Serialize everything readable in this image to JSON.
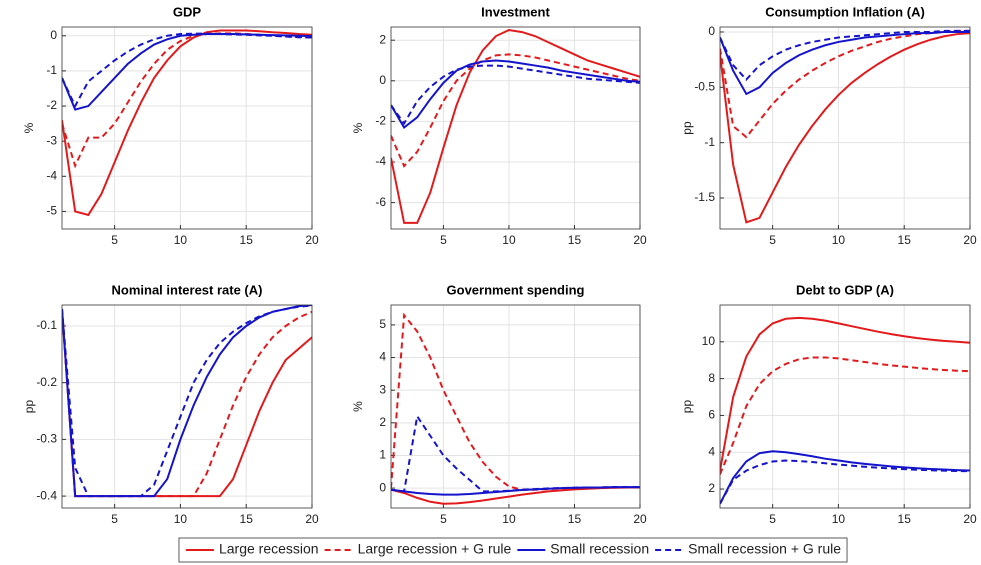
{
  "chart_data": [
    {
      "type": "line",
      "title": "GDP",
      "ylabel": "%",
      "legend_position": "bottom",
      "grid": true,
      "x": [
        1,
        2,
        3,
        4,
        5,
        6,
        7,
        8,
        9,
        10,
        11,
        12,
        13,
        14,
        15,
        16,
        17,
        18,
        19,
        20
      ],
      "xlim": [
        1,
        20
      ],
      "xticks": [
        5,
        10,
        15,
        20
      ],
      "ylim": [
        -5.5,
        0.25
      ],
      "yticks": [
        -5,
        -4,
        -3,
        -2,
        -1,
        0
      ],
      "series": [
        {
          "name": "Large recession",
          "color": "#e31a1c",
          "dash": false,
          "values": [
            -2.4,
            -5.0,
            -5.1,
            -4.5,
            -3.6,
            -2.7,
            -1.9,
            -1.2,
            -0.7,
            -0.3,
            -0.05,
            0.1,
            0.15,
            0.15,
            0.15,
            0.13,
            0.1,
            0.08,
            0.05,
            0.03
          ]
        },
        {
          "name": "Large recession + G rule",
          "color": "#e31a1c",
          "dash": true,
          "values": [
            -2.5,
            -3.7,
            -2.9,
            -2.9,
            -2.5,
            -1.9,
            -1.3,
            -0.8,
            -0.4,
            -0.15,
            0,
            0.05,
            0.07,
            0.07,
            0.05,
            0.03,
            0,
            -0.02,
            -0.04,
            -0.05
          ]
        },
        {
          "name": "Small recession",
          "color": "#1414cc",
          "dash": false,
          "values": [
            -1.2,
            -2.1,
            -2.0,
            -1.6,
            -1.2,
            -0.8,
            -0.5,
            -0.25,
            -0.1,
            0,
            0.03,
            0.05,
            0.05,
            0.05,
            0.04,
            0.03,
            0.02,
            0.01,
            0,
            -0.01
          ]
        },
        {
          "name": "Small recession + G rule",
          "color": "#1414cc",
          "dash": true,
          "values": [
            -1.2,
            -2.0,
            -1.3,
            -1.0,
            -0.7,
            -0.45,
            -0.25,
            -0.1,
            0,
            0.05,
            0.06,
            0.06,
            0.05,
            0.04,
            0.03,
            0.01,
            0,
            -0.02,
            -0.04,
            -0.05
          ]
        }
      ]
    },
    {
      "type": "line",
      "title": "Investment",
      "ylabel": "%",
      "grid": true,
      "x": [
        1,
        2,
        3,
        4,
        5,
        6,
        7,
        8,
        9,
        10,
        11,
        12,
        13,
        14,
        15,
        16,
        17,
        18,
        19,
        20
      ],
      "xlim": [
        1,
        20
      ],
      "xticks": [
        5,
        10,
        15,
        20
      ],
      "ylim": [
        -7.3,
        2.65
      ],
      "yticks": [
        -6,
        -4,
        -2,
        0,
        2
      ],
      "series": [
        {
          "color": "#e31a1c",
          "dash": false,
          "values": [
            -3.8,
            -7.0,
            -7.0,
            -5.5,
            -3.3,
            -1.2,
            0.4,
            1.5,
            2.2,
            2.5,
            2.4,
            2.2,
            1.9,
            1.6,
            1.3,
            1.0,
            0.8,
            0.6,
            0.4,
            0.2
          ]
        },
        {
          "color": "#e31a1c",
          "dash": true,
          "values": [
            -2.7,
            -4.2,
            -3.5,
            -2.3,
            -1.0,
            0,
            0.6,
            1.0,
            1.25,
            1.3,
            1.25,
            1.15,
            1.0,
            0.85,
            0.7,
            0.55,
            0.4,
            0.25,
            0.1,
            0
          ]
        },
        {
          "color": "#1414cc",
          "dash": false,
          "values": [
            -1.2,
            -2.3,
            -1.8,
            -0.9,
            -0.1,
            0.5,
            0.8,
            0.95,
            1.0,
            0.95,
            0.85,
            0.75,
            0.65,
            0.5,
            0.4,
            0.3,
            0.2,
            0.1,
            0,
            -0.05
          ]
        },
        {
          "color": "#1414cc",
          "dash": true,
          "values": [
            -1.2,
            -2.1,
            -1.0,
            -0.3,
            0.2,
            0.55,
            0.7,
            0.75,
            0.75,
            0.7,
            0.6,
            0.5,
            0.4,
            0.3,
            0.2,
            0.1,
            0.05,
            0,
            -0.05,
            -0.1
          ]
        }
      ]
    },
    {
      "type": "line",
      "title": "Consumption Inflation (A)",
      "ylabel": "pp",
      "grid": true,
      "x": [
        1,
        2,
        3,
        4,
        5,
        6,
        7,
        8,
        9,
        10,
        11,
        12,
        13,
        14,
        15,
        16,
        17,
        18,
        19,
        20
      ],
      "xlim": [
        1,
        20
      ],
      "xticks": [
        5,
        10,
        15,
        20
      ],
      "ylim": [
        -1.78,
        0.045
      ],
      "yticks": [
        -1.5,
        -1,
        -0.5,
        0
      ],
      "series": [
        {
          "color": "#e31a1c",
          "dash": false,
          "values": [
            -0.2,
            -1.2,
            -1.72,
            -1.68,
            -1.45,
            -1.22,
            -1.02,
            -0.85,
            -0.7,
            -0.57,
            -0.46,
            -0.37,
            -0.29,
            -0.22,
            -0.16,
            -0.11,
            -0.07,
            -0.04,
            -0.02,
            -0.01
          ]
        },
        {
          "color": "#e31a1c",
          "dash": true,
          "values": [
            -0.15,
            -0.85,
            -0.95,
            -0.8,
            -0.65,
            -0.53,
            -0.43,
            -0.35,
            -0.28,
            -0.22,
            -0.17,
            -0.13,
            -0.09,
            -0.06,
            -0.04,
            -0.02,
            -0.01,
            0,
            0.01,
            0.01
          ]
        },
        {
          "color": "#1414cc",
          "dash": false,
          "values": [
            -0.05,
            -0.35,
            -0.56,
            -0.5,
            -0.37,
            -0.28,
            -0.21,
            -0.16,
            -0.12,
            -0.09,
            -0.07,
            -0.05,
            -0.04,
            -0.03,
            -0.02,
            -0.01,
            -0.01,
            0,
            0,
            0
          ]
        },
        {
          "color": "#1414cc",
          "dash": true,
          "values": [
            -0.05,
            -0.3,
            -0.43,
            -0.3,
            -0.22,
            -0.16,
            -0.12,
            -0.09,
            -0.07,
            -0.05,
            -0.04,
            -0.03,
            -0.02,
            -0.01,
            0,
            0,
            0,
            0.01,
            0.01,
            0.01
          ]
        }
      ]
    },
    {
      "type": "line",
      "title": "Nominal interest rate (A)",
      "ylabel": "pp",
      "grid": true,
      "x": [
        1,
        2,
        3,
        4,
        5,
        6,
        7,
        8,
        9,
        10,
        11,
        12,
        13,
        14,
        15,
        16,
        17,
        18,
        19,
        20
      ],
      "xlim": [
        1,
        20
      ],
      "xticks": [
        5,
        10,
        15,
        20
      ],
      "ylim": [
        -0.421,
        -0.063
      ],
      "yticks": [
        -0.4,
        -0.3,
        -0.2,
        -0.1
      ],
      "series": [
        {
          "color": "#e31a1c",
          "dash": false,
          "values": [
            -0.07,
            -0.4,
            -0.4,
            -0.4,
            -0.4,
            -0.4,
            -0.4,
            -0.4,
            -0.4,
            -0.4,
            -0.4,
            -0.4,
            -0.4,
            -0.37,
            -0.31,
            -0.25,
            -0.2,
            -0.16,
            -0.14,
            -0.12
          ]
        },
        {
          "color": "#e31a1c",
          "dash": true,
          "values": [
            -0.07,
            -0.4,
            -0.4,
            -0.4,
            -0.4,
            -0.4,
            -0.4,
            -0.4,
            -0.4,
            -0.4,
            -0.4,
            -0.36,
            -0.3,
            -0.24,
            -0.19,
            -0.15,
            -0.12,
            -0.1,
            -0.085,
            -0.075
          ]
        },
        {
          "color": "#1414cc",
          "dash": false,
          "values": [
            -0.07,
            -0.4,
            -0.4,
            -0.4,
            -0.4,
            -0.4,
            -0.4,
            -0.4,
            -0.37,
            -0.3,
            -0.24,
            -0.19,
            -0.15,
            -0.12,
            -0.1,
            -0.085,
            -0.075,
            -0.07,
            -0.065,
            -0.063
          ]
        },
        {
          "color": "#1414cc",
          "dash": true,
          "values": [
            -0.07,
            -0.35,
            -0.4,
            -0.4,
            -0.4,
            -0.4,
            -0.4,
            -0.38,
            -0.32,
            -0.26,
            -0.2,
            -0.16,
            -0.13,
            -0.11,
            -0.095,
            -0.083,
            -0.075,
            -0.07,
            -0.066,
            -0.064
          ]
        }
      ]
    },
    {
      "type": "line",
      "title": "Government spending",
      "ylabel": "%",
      "grid": true,
      "x": [
        1,
        2,
        3,
        4,
        5,
        6,
        7,
        8,
        9,
        10,
        11,
        12,
        13,
        14,
        15,
        16,
        17,
        18,
        19,
        20
      ],
      "xlim": [
        1,
        20
      ],
      "xticks": [
        5,
        10,
        15,
        20
      ],
      "ylim": [
        -0.61,
        5.61
      ],
      "yticks": [
        0,
        1,
        2,
        3,
        4,
        5
      ],
      "series": [
        {
          "color": "#e31a1c",
          "dash": false,
          "values": [
            -0.05,
            -0.15,
            -0.3,
            -0.42,
            -0.48,
            -0.47,
            -0.43,
            -0.38,
            -0.32,
            -0.26,
            -0.2,
            -0.15,
            -0.1,
            -0.07,
            -0.04,
            -0.02,
            0,
            0.01,
            0.02,
            0.02
          ]
        },
        {
          "color": "#e31a1c",
          "dash": true,
          "values": [
            0,
            5.3,
            4.8,
            4.0,
            3.0,
            2.2,
            1.4,
            0.8,
            0.35,
            0.05,
            -0.05,
            -0.05,
            -0.03,
            -0.01,
            0,
            0.01,
            0.02,
            0.03,
            0.03,
            0.03
          ]
        },
        {
          "color": "#1414cc",
          "dash": false,
          "values": [
            -0.05,
            -0.1,
            -0.15,
            -0.18,
            -0.2,
            -0.2,
            -0.18,
            -0.15,
            -0.12,
            -0.09,
            -0.06,
            -0.04,
            -0.02,
            0,
            0.01,
            0.02,
            0.02,
            0.03,
            0.03,
            0.03
          ]
        },
        {
          "color": "#1414cc",
          "dash": true,
          "values": [
            -0.05,
            -0.1,
            2.2,
            1.6,
            1.0,
            0.6,
            0.25,
            -0.1,
            -0.1,
            -0.08,
            -0.05,
            -0.03,
            -0.01,
            0,
            0.01,
            0.02,
            0.02,
            0.03,
            0.03,
            0.03
          ]
        }
      ]
    },
    {
      "type": "line",
      "title": "Debt to GDP (A)",
      "ylabel": "pp",
      "grid": true,
      "x": [
        1,
        2,
        3,
        4,
        5,
        6,
        7,
        8,
        9,
        10,
        11,
        12,
        13,
        14,
        15,
        16,
        17,
        18,
        19,
        20
      ],
      "xlim": [
        1,
        20
      ],
      "xticks": [
        5,
        10,
        15,
        20
      ],
      "ylim": [
        0.97,
        12.0
      ],
      "yticks": [
        2,
        4,
        6,
        8,
        10
      ],
      "series": [
        {
          "color": "#e31a1c",
          "dash": false,
          "values": [
            3,
            7,
            9.2,
            10.4,
            11.0,
            11.25,
            11.3,
            11.25,
            11.15,
            11.0,
            10.85,
            10.7,
            10.55,
            10.42,
            10.3,
            10.2,
            10.12,
            10.05,
            10.0,
            9.95
          ]
        },
        {
          "color": "#e31a1c",
          "dash": true,
          "values": [
            2.8,
            4.5,
            6.5,
            7.7,
            8.4,
            8.8,
            9.05,
            9.15,
            9.15,
            9.1,
            9.0,
            8.9,
            8.8,
            8.72,
            8.65,
            8.58,
            8.52,
            8.47,
            8.43,
            8.4
          ]
        },
        {
          "color": "#1414cc",
          "dash": false,
          "values": [
            1.2,
            2.6,
            3.5,
            3.95,
            4.05,
            4.0,
            3.9,
            3.78,
            3.65,
            3.55,
            3.45,
            3.37,
            3.3,
            3.23,
            3.18,
            3.13,
            3.09,
            3.06,
            3.03,
            3.01
          ]
        },
        {
          "color": "#1414cc",
          "dash": true,
          "values": [
            1.2,
            2.5,
            3.0,
            3.3,
            3.5,
            3.55,
            3.52,
            3.47,
            3.4,
            3.33,
            3.27,
            3.21,
            3.16,
            3.12,
            3.08,
            3.05,
            3.02,
            3.0,
            2.98,
            2.97
          ]
        }
      ]
    }
  ]
}
